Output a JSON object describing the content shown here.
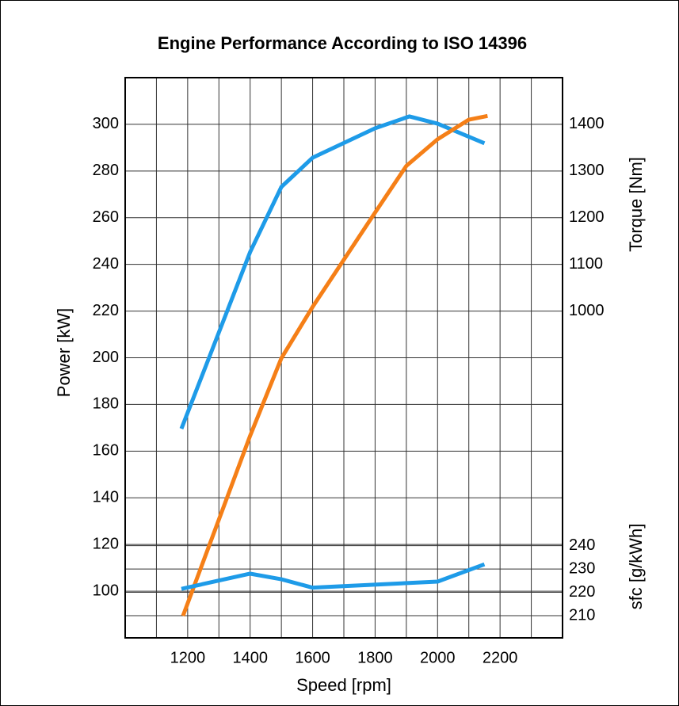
{
  "chart_data": {
    "type": "line",
    "title": "Engine Performance According to ISO 14396",
    "xlabel": "Speed [rpm]",
    "ylabel": "Power [kW]",
    "y2label": "Torque [Nm]",
    "y3label": "sfc [g/kWh]",
    "xlim": [
      1000,
      2400
    ],
    "xticks": [
      1200,
      1400,
      1600,
      1800,
      2000,
      2200
    ],
    "xminor_ticks": [
      1100,
      1300,
      1500,
      1700,
      1900,
      2100,
      2300
    ],
    "ylim": [
      80,
      320
    ],
    "yticks": [
      100,
      120,
      140,
      160,
      180,
      200,
      220,
      240,
      260,
      280,
      300
    ],
    "y2lim": [
      300,
      1500
    ],
    "y2ticks": [
      1000,
      1100,
      1200,
      1300,
      1400
    ],
    "y3lim": [
      200.5,
      440.5
    ],
    "y3ticks": [
      210,
      220,
      230,
      240
    ],
    "grid": true,
    "series": [
      {
        "color": "#1e9be8",
        "axis": "y",
        "x": [
          1180,
          1400,
          1500,
          1600,
          1800,
          1910,
          2000,
          2150
        ],
        "values": [
          169.6,
          245.3,
          273.2,
          285.7,
          298.3,
          303.4,
          300.3,
          291.9
        ]
      },
      {
        "color": "#f57f17",
        "axis": "y2",
        "x": [
          1185,
          1400,
          1500,
          1600,
          1800,
          1900,
          2000,
          2100,
          2160
        ],
        "values": [
          347,
          733,
          899,
          1009,
          1211,
          1311,
          1368,
          1410,
          1418
        ]
      },
      {
        "color": "#1e9be8",
        "axis": "y3",
        "x": [
          1180,
          1400,
          1500,
          1600,
          2000,
          2150
        ],
        "values": [
          221.5,
          228,
          225.6,
          222,
          224.6,
          232
        ]
      }
    ]
  }
}
